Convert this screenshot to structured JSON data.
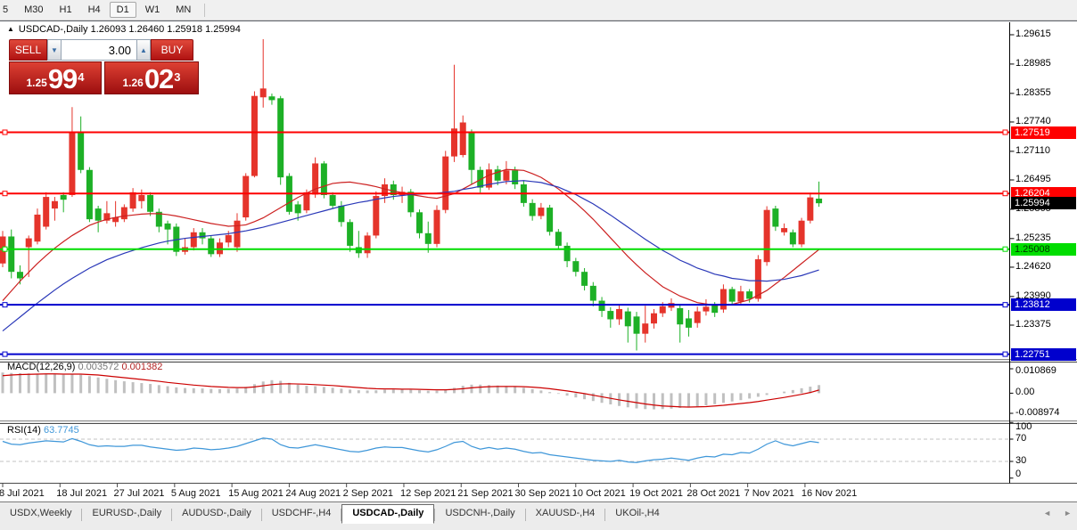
{
  "toolbar": {
    "timeframes": [
      {
        "label": "5",
        "active": false,
        "cut": true
      },
      {
        "label": "M30",
        "active": false
      },
      {
        "label": "H1",
        "active": false
      },
      {
        "label": "H4",
        "active": false
      },
      {
        "label": "D1",
        "active": true
      },
      {
        "label": "W1",
        "active": false
      },
      {
        "label": "MN",
        "active": false
      }
    ]
  },
  "chart": {
    "header": {
      "collapse_icon": "▲",
      "title": "USDCAD-,Daily",
      "ohlc": "1.26093 1.26460 1.25918 1.25994"
    }
  },
  "trade": {
    "sell_label": "SELL",
    "buy_label": "BUY",
    "volume": "3.00",
    "spin_down_icon": "▼",
    "spin_up_icon": "▲",
    "bid": {
      "prefix": "1.25",
      "big": "99",
      "sup": "4"
    },
    "ask": {
      "prefix": "1.26",
      "big": "02",
      "sup": "3"
    }
  },
  "indicators": {
    "macd": {
      "title": "MACD(12,26,9)",
      "value1": "0.003572",
      "value2": "0.001382",
      "axis": [
        "0.010869",
        "0.00",
        "-0.008974"
      ]
    },
    "rsi": {
      "title": "RSI(14)",
      "value": "63.7745",
      "axis": [
        "100",
        "70",
        "30",
        "0"
      ],
      "levels": [
        70,
        30
      ]
    }
  },
  "tabs": {
    "items": [
      "USDX,Weekly",
      "EURUSD-,Daily",
      "AUDUSD-,Daily",
      "USDCHF-,H4",
      "USDCAD-,Daily",
      "USDCNH-,Daily",
      "XAUUSD-,H4",
      "UKOil-,H4"
    ],
    "active_index": 4,
    "scroll_left_icon": "◄",
    "scroll_right_icon": "►"
  },
  "colors": {
    "bull_candle": "#e5342b",
    "bear_candle": "#1db026",
    "ma_fast": "#cc2020",
    "ma_slow": "#2a38b8",
    "hline_red": "#fe0000",
    "hline_green": "#00dd00",
    "hline_blue": "#0000cd",
    "macd_hist": "#c0c0c0",
    "macd_signal": "#cc0000",
    "rsi_line": "#3f97d9"
  },
  "chart_data": {
    "type": "candlestick",
    "symbol": "USDCAD-",
    "timeframe": "Daily",
    "title": "USDCAD-,Daily",
    "current_ohlc": {
      "open": 1.26093,
      "high": 1.2646,
      "low": 1.25918,
      "close": 1.25994
    },
    "price_ticks": [
      "1.29615",
      "1.28985",
      "1.28355",
      "1.27740",
      "1.27110",
      "1.26495",
      "1.25865",
      "1.25235",
      "1.24620",
      "1.23990",
      "1.23375"
    ],
    "x_dates": [
      "8 Jul 2021",
      "18 Jul 2021",
      "27 Jul 2021",
      "5 Aug 2021",
      "15 Aug 2021",
      "24 Aug 2021",
      "2 Sep 2021",
      "12 Sep 2021",
      "21 Sep 2021",
      "30 Sep 2021",
      "10 Oct 2021",
      "19 Oct 2021",
      "28 Oct 2021",
      "7 Nov 2021",
      "16 Nov 2021"
    ],
    "hlines": [
      {
        "value": 1.27519,
        "label": "1.27519",
        "color": "red"
      },
      {
        "value": 1.26204,
        "label": "1.26204",
        "color": "red"
      },
      {
        "value": 1.25008,
        "label": "1.25008",
        "color": "green"
      },
      {
        "value": 1.23812,
        "label": "1.23812",
        "color": "blue"
      },
      {
        "value": 1.22751,
        "label": "1.22751",
        "color": "blue"
      }
    ],
    "current_price": {
      "value": 1.25994,
      "label": "1.25994"
    },
    "candles": [
      [
        1.247,
        1.254,
        1.2462,
        1.2528
      ],
      [
        1.2528,
        1.2543,
        1.2438,
        1.2452
      ],
      [
        1.2452,
        1.2466,
        1.2425,
        1.2438
      ],
      [
        1.2505,
        1.253,
        1.2441,
        1.2524
      ],
      [
        1.2517,
        1.2588,
        1.2511,
        1.2575
      ],
      [
        1.2549,
        1.2623,
        1.2543,
        1.2613
      ],
      [
        1.2588,
        1.2613,
        1.2562,
        1.2604
      ],
      [
        1.2617,
        1.2623,
        1.258,
        1.2607
      ],
      [
        1.2617,
        1.2806,
        1.2613,
        1.2751
      ],
      [
        1.2751,
        1.2786,
        1.2664,
        1.2671
      ],
      [
        1.2671,
        1.2677,
        1.2559,
        1.2565
      ],
      [
        1.2588,
        1.2594,
        1.2537,
        1.2562
      ],
      [
        1.2562,
        1.2604,
        1.2556,
        1.2578
      ],
      [
        1.2559,
        1.2604,
        1.2549,
        1.2569
      ],
      [
        1.2565,
        1.2597,
        1.2559,
        1.2591
      ],
      [
        1.2588,
        1.2632,
        1.2581,
        1.2623
      ],
      [
        1.2604,
        1.2629,
        1.2588,
        1.2617
      ],
      [
        1.2617,
        1.2623,
        1.2572,
        1.2581
      ],
      [
        1.2581,
        1.2588,
        1.2537,
        1.2549
      ],
      [
        1.2556,
        1.2562,
        1.2511,
        1.2543
      ],
      [
        1.2549,
        1.2556,
        1.2486,
        1.2495
      ],
      [
        1.2495,
        1.2524,
        1.2489,
        1.2505
      ],
      [
        1.2505,
        1.2546,
        1.2498,
        1.2537
      ],
      [
        1.2537,
        1.2546,
        1.2511,
        1.2524
      ],
      [
        1.2524,
        1.253,
        1.2484,
        1.249
      ],
      [
        1.249,
        1.2524,
        1.2484,
        1.2515
      ],
      [
        1.2515,
        1.254,
        1.2505,
        1.2531
      ],
      [
        1.2505,
        1.2578,
        1.2495,
        1.2562
      ],
      [
        1.2569,
        1.2664,
        1.2562,
        1.2658
      ],
      [
        1.2658,
        1.284,
        1.2655,
        1.283
      ],
      [
        1.2827,
        1.2952,
        1.2805,
        1.2846
      ],
      [
        1.2829,
        1.2835,
        1.2811,
        1.2821
      ],
      [
        1.2825,
        1.283,
        1.2639,
        1.2655
      ],
      [
        1.2658,
        1.2664,
        1.2575,
        1.2581
      ],
      [
        1.2597,
        1.2604,
        1.2562,
        1.2578
      ],
      [
        1.2584,
        1.2629,
        1.2578,
        1.2623
      ],
      [
        1.2618,
        1.2698,
        1.2611,
        1.2685
      ],
      [
        1.2685,
        1.269,
        1.261,
        1.2617
      ],
      [
        1.2617,
        1.2623,
        1.2588,
        1.2594
      ],
      [
        1.2594,
        1.2604,
        1.2549,
        1.2559
      ],
      [
        1.2559,
        1.2565,
        1.2495,
        1.2508
      ],
      [
        1.2505,
        1.254,
        1.2482,
        1.2492
      ],
      [
        1.2492,
        1.2537,
        1.2482,
        1.253
      ],
      [
        1.253,
        1.2625,
        1.2524,
        1.2615
      ],
      [
        1.2615,
        1.2653,
        1.26,
        1.264
      ],
      [
        1.264,
        1.2648,
        1.2607,
        1.2617
      ],
      [
        1.2617,
        1.2635,
        1.26,
        1.2624
      ],
      [
        1.2624,
        1.263,
        1.257,
        1.258
      ],
      [
        1.258,
        1.2586,
        1.2524,
        1.2535
      ],
      [
        1.2535,
        1.256,
        1.2493,
        1.2512
      ],
      [
        1.2512,
        1.2595,
        1.2505,
        1.2585
      ],
      [
        1.2585,
        1.2712,
        1.2578,
        1.27
      ],
      [
        1.27,
        1.2897,
        1.2688,
        1.276
      ],
      [
        1.2703,
        1.2788,
        1.2698,
        1.2773
      ],
      [
        1.2751,
        1.2758,
        1.264,
        1.2671
      ],
      [
        1.2671,
        1.2678,
        1.2622,
        1.2633
      ],
      [
        1.2633,
        1.2685,
        1.2628,
        1.2672
      ],
      [
        1.2672,
        1.268,
        1.2638,
        1.2648
      ],
      [
        1.2648,
        1.269,
        1.264,
        1.267
      ],
      [
        1.267,
        1.2678,
        1.263,
        1.264
      ],
      [
        1.264,
        1.2648,
        1.2592,
        1.26
      ],
      [
        1.26,
        1.2608,
        1.2562,
        1.2572
      ],
      [
        1.2572,
        1.26,
        1.2565,
        1.259
      ],
      [
        1.259,
        1.2596,
        1.253,
        1.2538
      ],
      [
        1.2538,
        1.2544,
        1.25,
        1.2508
      ],
      [
        1.2508,
        1.2515,
        1.2462,
        1.2475
      ],
      [
        1.2475,
        1.2482,
        1.2442,
        1.2452
      ],
      [
        1.2452,
        1.246,
        1.2412,
        1.2422
      ],
      [
        1.2422,
        1.243,
        1.2378,
        1.239
      ],
      [
        1.239,
        1.2398,
        1.2355,
        1.2368
      ],
      [
        1.2368,
        1.2376,
        1.2332,
        1.235
      ],
      [
        1.235,
        1.2382,
        1.2338,
        1.2372
      ],
      [
        1.2367,
        1.2375,
        1.23,
        1.2335
      ],
      [
        1.2356,
        1.2366,
        1.2283,
        1.2319
      ],
      [
        1.2319,
        1.2379,
        1.23,
        1.2341
      ],
      [
        1.2341,
        1.2372,
        1.233,
        1.2363
      ],
      [
        1.2363,
        1.2387,
        1.2355,
        1.2378
      ],
      [
        1.2375,
        1.2395,
        1.2368,
        1.2385
      ],
      [
        1.2374,
        1.238,
        1.23,
        1.2339
      ],
      [
        1.2352,
        1.237,
        1.2313,
        1.2332
      ],
      [
        1.2342,
        1.2377,
        1.2332,
        1.2367
      ],
      [
        1.2367,
        1.2393,
        1.2358,
        1.2377
      ],
      [
        1.238,
        1.2387,
        1.2355,
        1.2364
      ],
      [
        1.2371,
        1.2425,
        1.2364,
        1.2415
      ],
      [
        1.2415,
        1.242,
        1.238,
        1.2388
      ],
      [
        1.2388,
        1.2422,
        1.2382,
        1.241
      ],
      [
        1.241,
        1.2415,
        1.2386,
        1.2394
      ],
      [
        1.2394,
        1.2488,
        1.2388,
        1.2479
      ],
      [
        1.2473,
        1.2593,
        1.2465,
        1.2585
      ],
      [
        1.2588,
        1.2594,
        1.254,
        1.2549
      ],
      [
        1.2537,
        1.2556,
        1.253,
        1.2546
      ],
      [
        1.2537,
        1.2543,
        1.2505,
        1.2511
      ],
      [
        1.2511,
        1.2568,
        1.2505,
        1.2562
      ],
      [
        1.2562,
        1.2622,
        1.2556,
        1.2612
      ],
      [
        1.26093,
        1.2646,
        1.25918,
        1.25994
      ]
    ],
    "ma_fast": [
      1.239,
      1.2411,
      1.2432,
      1.2451,
      1.247,
      1.2487,
      1.2503,
      1.2517,
      1.253,
      1.2541,
      1.2552,
      1.2559,
      1.2565,
      1.2569,
      1.2572,
      1.2574,
      1.2576,
      1.2577,
      1.2577,
      1.2575,
      1.2572,
      1.2568,
      1.2564,
      1.256,
      1.2556,
      1.2553,
      1.255,
      1.2551,
      1.2553,
      1.256,
      1.2568,
      1.2579,
      1.259,
      1.2601,
      1.2612,
      1.2621,
      1.263,
      1.2636,
      1.2642,
      1.2644,
      1.2645,
      1.2642,
      1.2639,
      1.2635,
      1.263,
      1.2626,
      1.2622,
      1.2618,
      1.2615,
      1.2612,
      1.261,
      1.2615,
      1.262,
      1.263,
      1.264,
      1.265,
      1.266,
      1.2666,
      1.2672,
      1.2671,
      1.267,
      1.2663,
      1.2655,
      1.2643,
      1.263,
      1.2615,
      1.26,
      1.2583,
      1.2565,
      1.2545,
      1.2525,
      1.2505,
      1.2485,
      1.2467,
      1.245,
      1.2435,
      1.242,
      1.241,
      1.24,
      1.2393,
      1.2386,
      1.2383,
      1.238,
      1.2381,
      1.2382,
      1.2387,
      1.2392,
      1.2402,
      1.2412,
      1.2426,
      1.244,
      1.2455,
      1.247,
      1.2485,
      1.25
    ],
    "ma_slow": [
      1.2325,
      1.234,
      1.2355,
      1.237,
      1.2385,
      1.2399,
      1.2413,
      1.2426,
      1.2438,
      1.2449,
      1.246,
      1.2469,
      1.2478,
      1.2485,
      1.2492,
      1.2498,
      1.2504,
      1.2509,
      1.2514,
      1.2518,
      1.2521,
      1.2524,
      1.2526,
      1.2528,
      1.253,
      1.2532,
      1.2534,
      1.2537,
      1.254,
      1.2544,
      1.2548,
      1.2553,
      1.2558,
      1.2563,
      1.2568,
      1.2573,
      1.2578,
      1.2583,
      1.2588,
      1.2593,
      1.2597,
      1.2601,
      1.2604,
      1.2608,
      1.2611,
      1.2614,
      1.2616,
      1.2618,
      1.2619,
      1.262,
      1.2621,
      1.2623,
      1.2625,
      1.2629,
      1.2632,
      1.2636,
      1.264,
      1.2643,
      1.2646,
      1.2647,
      1.2648,
      1.2646,
      1.2644,
      1.2639,
      1.2634,
      1.2626,
      1.2618,
      1.2608,
      1.2598,
      1.2586,
      1.2574,
      1.2561,
      1.2548,
      1.2535,
      1.2522,
      1.251,
      1.2498,
      1.2488,
      1.2477,
      1.2469,
      1.246,
      1.2454,
      1.2447,
      1.2443,
      1.2438,
      1.2436,
      1.2433,
      1.2433,
      1.2432,
      1.2434,
      1.2436,
      1.244,
      1.2444,
      1.245,
      1.2456
    ],
    "macd": {
      "histogram": [
        0.0092,
        0.009,
        0.0089,
        0.0088,
        0.0087,
        0.0086,
        0.0084,
        0.0082,
        0.0086,
        0.0082,
        0.0076,
        0.007,
        0.0064,
        0.0058,
        0.0053,
        0.0049,
        0.0045,
        0.0041,
        0.0036,
        0.0031,
        0.0026,
        0.0023,
        0.0022,
        0.0021,
        0.0019,
        0.0018,
        0.0019,
        0.0021,
        0.0028,
        0.004,
        0.0052,
        0.0058,
        0.0055,
        0.0046,
        0.0038,
        0.0033,
        0.0031,
        0.0028,
        0.0024,
        0.002,
        0.0016,
        0.0013,
        0.0012,
        0.0013,
        0.0015,
        0.0016,
        0.0016,
        0.0015,
        0.0013,
        0.0011,
        0.0011,
        0.0015,
        0.0024,
        0.0033,
        0.0038,
        0.0038,
        0.0036,
        0.0034,
        0.0032,
        0.0029,
        0.0024,
        0.0018,
        0.0012,
        0.0005,
        -0.0003,
        -0.0011,
        -0.0019,
        -0.0027,
        -0.0035,
        -0.0043,
        -0.005,
        -0.0057,
        -0.0063,
        -0.0068,
        -0.0071,
        -0.0072,
        -0.0071,
        -0.0069,
        -0.0066,
        -0.0063,
        -0.0059,
        -0.0054,
        -0.0049,
        -0.0043,
        -0.0037,
        -0.0031,
        -0.0024,
        -0.0016,
        -0.0008,
        -0.0001,
        0.0007,
        0.0014,
        0.0022,
        0.0029,
        0.0036
      ],
      "signal": [
        0.0078,
        0.0081,
        0.0083,
        0.0084,
        0.0085,
        0.0086,
        0.0086,
        0.0085,
        0.0085,
        0.0085,
        0.0083,
        0.0081,
        0.0077,
        0.0073,
        0.0069,
        0.0065,
        0.0061,
        0.0057,
        0.0053,
        0.0048,
        0.0044,
        0.004,
        0.0036,
        0.0033,
        0.003,
        0.0028,
        0.0026,
        0.0025,
        0.0025,
        0.0028,
        0.0033,
        0.0038,
        0.0041,
        0.0042,
        0.0041,
        0.004,
        0.0038,
        0.0036,
        0.0034,
        0.0031,
        0.0028,
        0.0025,
        0.0022,
        0.002,
        0.0019,
        0.0019,
        0.0018,
        0.0018,
        0.0017,
        0.0016,
        0.0015,
        0.0015,
        0.0017,
        0.002,
        0.0024,
        0.0027,
        0.0029,
        0.003,
        0.003,
        0.003,
        0.0029,
        0.0027,
        0.0024,
        0.002,
        0.0015,
        0.001,
        0.0004,
        -0.0002,
        -0.0009,
        -0.0016,
        -0.0023,
        -0.003,
        -0.0036,
        -0.0042,
        -0.0048,
        -0.0053,
        -0.0057,
        -0.0059,
        -0.0061,
        -0.0062,
        -0.0061,
        -0.006,
        -0.0057,
        -0.0054,
        -0.005,
        -0.0046,
        -0.0042,
        -0.0037,
        -0.0031,
        -0.0025,
        -0.0019,
        -0.0012,
        -0.0005,
        0.0003,
        0.0014
      ],
      "range": [
        0.010869,
        -0.008974
      ]
    },
    "rsi": {
      "values": [
        66,
        61,
        60,
        63,
        65,
        67,
        66,
        65,
        71,
        66,
        60,
        57,
        58,
        57,
        57,
        59,
        59,
        56,
        54,
        52,
        50,
        51,
        54,
        53,
        51,
        52,
        54,
        57,
        62,
        67,
        72,
        70,
        60,
        55,
        54,
        57,
        60,
        57,
        54,
        51,
        48,
        47,
        50,
        54,
        56,
        55,
        55,
        52,
        49,
        47,
        51,
        57,
        64,
        66,
        57,
        52,
        55,
        52,
        54,
        52,
        48,
        45,
        46,
        42,
        40,
        38,
        36,
        34,
        32,
        31,
        30,
        32,
        29,
        28,
        31,
        33,
        34,
        36,
        34,
        32,
        36,
        39,
        38,
        43,
        42,
        46,
        45,
        52,
        61,
        67,
        61,
        58,
        62,
        66,
        63.8
      ],
      "range": [
        0,
        100
      ]
    }
  }
}
